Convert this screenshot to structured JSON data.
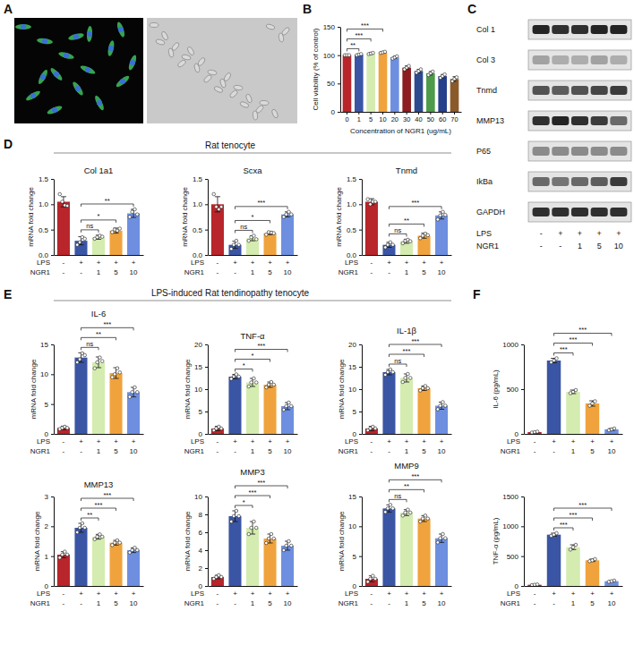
{
  "panel_labels": [
    "A",
    "B",
    "C",
    "D",
    "E",
    "F"
  ],
  "section_titles": [
    "Rat tenocyte",
    "LPS-induced Rat tendinopathy tenocyte"
  ],
  "conditions": {
    "rows": [
      {
        "label": "LPS",
        "cells": [
          "-",
          "+",
          "+",
          "+",
          "+"
        ]
      },
      {
        "label": "NGR1",
        "cells": [
          "-",
          "-",
          "1",
          "5",
          "10"
        ]
      }
    ]
  },
  "blot": {
    "intensity_range": [
      0,
      1
    ],
    "rows": [
      {
        "label": "Col 1",
        "bands": [
          0.9,
          0.85,
          0.85,
          0.9,
          0.9
        ]
      },
      {
        "label": "Col 3",
        "bands": [
          0.35,
          0.3,
          0.3,
          0.35,
          0.3
        ]
      },
      {
        "label": "Tnmd",
        "bands": [
          0.7,
          0.65,
          0.7,
          0.75,
          0.8
        ]
      },
      {
        "label": "MMP13",
        "bands": [
          0.85,
          0.9,
          0.85,
          0.8,
          0.6
        ]
      },
      {
        "label": "P65",
        "bands": [
          0.45,
          0.45,
          0.45,
          0.45,
          0.45
        ]
      },
      {
        "label": "IkBa",
        "bands": [
          0.6,
          0.55,
          0.6,
          0.65,
          0.8
        ]
      },
      {
        "label": "GAPDH",
        "bands": [
          0.85,
          0.85,
          0.85,
          0.85,
          0.85
        ]
      }
    ]
  },
  "chart_data": [
    {
      "type": "bar",
      "x_label": "Concentration of NGR1 (ug/mL)",
      "y_label": "Cell viability (% of control)",
      "categories": [
        "0",
        "1",
        "5",
        "10",
        "20",
        "30",
        "40",
        "50",
        "60",
        "70"
      ],
      "values": [
        100,
        101,
        103,
        105,
        96,
        78,
        72,
        68,
        63,
        58
      ],
      "errors": [
        1,
        1,
        1.5,
        1,
        2,
        3,
        3,
        3,
        3,
        4
      ],
      "points": [
        [
          100,
          100,
          100
        ],
        [
          100,
          101,
          102
        ],
        [
          102,
          103,
          104
        ],
        [
          104,
          105,
          106
        ],
        [
          94,
          96,
          98
        ],
        [
          75,
          78,
          81
        ],
        [
          69,
          72,
          75
        ],
        [
          65,
          68,
          71
        ],
        [
          60,
          63,
          66
        ],
        [
          54,
          58,
          61
        ]
      ],
      "colors": [
        "#b8252a",
        "#3a55a4",
        "#d4ecb0",
        "#f0a33c",
        "#6e8fe0",
        "#8c1d20",
        "#2d4a8f",
        "#4d9a4a",
        "#27408b",
        "#8b5a2b"
      ],
      "ylim": [
        0,
        150
      ],
      "yticks": [
        0,
        50,
        100,
        150
      ],
      "comparisons": [
        {
          "between": [
            0,
            1
          ],
          "label": "**"
        },
        {
          "between": [
            0,
            2
          ],
          "label": "***"
        },
        {
          "between": [
            0,
            3
          ],
          "label": "***"
        }
      ]
    },
    {
      "type": "bar",
      "title": "Col 1a1",
      "y_label": "mRNA fold change",
      "categories": [
        null,
        null,
        null,
        null,
        null
      ],
      "values": [
        1.05,
        0.28,
        0.35,
        0.48,
        0.82
      ],
      "errors": [
        0.1,
        0.08,
        0.04,
        0.05,
        0.08
      ],
      "points": [
        [
          1.2,
          1.05,
          0.98,
          0.97
        ],
        [
          0.2,
          0.25,
          0.35,
          0.32
        ],
        [
          0.32,
          0.35,
          0.38,
          0.36
        ],
        [
          0.45,
          0.5,
          0.48,
          0.52
        ],
        [
          0.75,
          0.85,
          0.9,
          0.8
        ]
      ],
      "colors": [
        "#b8252a",
        "#3a55a4",
        "#d4ecb0",
        "#f0a33c",
        "#6e8fe0"
      ],
      "ylim": [
        0,
        1.5
      ],
      "yticks": [
        {
          "value": 0,
          "label": "0.0"
        },
        0.5,
        {
          "value": 1,
          "label": "1.0"
        },
        1.5
      ],
      "comparisons": [
        {
          "between": [
            1,
            2
          ],
          "label": "ns"
        },
        {
          "between": [
            1,
            3
          ],
          "label": "*"
        },
        {
          "between": [
            1,
            4
          ],
          "label": "**"
        }
      ]
    },
    {
      "type": "bar",
      "title": "Scxa",
      "y_label": "mRNA fold change",
      "categories": [
        null,
        null,
        null,
        null,
        null
      ],
      "values": [
        1.0,
        0.2,
        0.33,
        0.43,
        0.8
      ],
      "errors": [
        0.15,
        0.07,
        0.05,
        0.03,
        0.05
      ],
      "points": [
        [
          1.2,
          0.95,
          0.9,
          0.95
        ],
        [
          0.12,
          0.2,
          0.28,
          0.2
        ],
        [
          0.28,
          0.35,
          0.38,
          0.31
        ],
        [
          0.4,
          0.45,
          0.44,
          0.43
        ],
        [
          0.75,
          0.8,
          0.85,
          0.8
        ]
      ],
      "colors": [
        "#b8252a",
        "#3a55a4",
        "#d4ecb0",
        "#f0a33c",
        "#6e8fe0"
      ],
      "ylim": [
        0,
        1.5
      ],
      "yticks": [
        {
          "value": 0,
          "label": "0.0"
        },
        0.5,
        {
          "value": 1,
          "label": "1.0"
        },
        1.5
      ],
      "comparisons": [
        {
          "between": [
            1,
            2
          ],
          "label": "ns"
        },
        {
          "between": [
            1,
            3
          ],
          "label": "*"
        },
        {
          "between": [
            1,
            4
          ],
          "label": "***"
        }
      ]
    },
    {
      "type": "bar",
      "title": "Tnmd",
      "y_label": "mRNA fold change",
      "categories": [
        null,
        null,
        null,
        null,
        null
      ],
      "values": [
        1.05,
        0.2,
        0.27,
        0.38,
        0.78
      ],
      "errors": [
        0.06,
        0.05,
        0.04,
        0.05,
        0.07
      ],
      "points": [
        [
          1.1,
          1.0,
          1.05,
          1.05
        ],
        [
          0.15,
          0.2,
          0.25,
          0.2
        ],
        [
          0.23,
          0.28,
          0.3,
          0.27
        ],
        [
          0.33,
          0.38,
          0.42,
          0.39
        ],
        [
          0.7,
          0.78,
          0.85,
          0.79
        ]
      ],
      "colors": [
        "#b8252a",
        "#3a55a4",
        "#d4ecb0",
        "#f0a33c",
        "#6e8fe0"
      ],
      "ylim": [
        0,
        1.5
      ],
      "yticks": [
        {
          "value": 0,
          "label": "0.0"
        },
        0.5,
        {
          "value": 1,
          "label": "1.0"
        },
        1.5
      ],
      "comparisons": [
        {
          "between": [
            1,
            2
          ],
          "label": "ns"
        },
        {
          "between": [
            1,
            3
          ],
          "label": "**"
        },
        {
          "between": [
            1,
            4
          ],
          "label": "***"
        }
      ]
    },
    {
      "type": "bar",
      "title": "IL-6",
      "y_label": "mRNA fold change",
      "categories": [
        null,
        null,
        null,
        null,
        null
      ],
      "values": [
        1,
        12.8,
        12,
        10.2,
        7
      ],
      "errors": [
        0.3,
        0.8,
        0.9,
        0.9,
        0.8
      ],
      "points": [
        [
          0.8,
          1,
          1.2,
          1
        ],
        [
          12,
          12.5,
          13.5,
          13.2
        ],
        [
          11,
          12,
          12.8,
          12.2
        ],
        [
          9.5,
          10,
          11,
          10.3
        ],
        [
          6.2,
          7,
          7.8,
          7
        ]
      ],
      "colors": [
        "#b8252a",
        "#3a55a4",
        "#d4ecb0",
        "#f0a33c",
        "#6e8fe0"
      ],
      "ylim": [
        0,
        15
      ],
      "yticks": [
        0,
        5,
        10,
        15
      ],
      "comparisons": [
        {
          "between": [
            1,
            2
          ],
          "label": "ns"
        },
        {
          "between": [
            1,
            3
          ],
          "label": "**"
        },
        {
          "between": [
            1,
            4
          ],
          "label": "***"
        }
      ]
    },
    {
      "type": "bar",
      "title": "TNF-α",
      "y_label": "mRNA fold change",
      "categories": [
        null,
        null,
        null,
        null,
        null
      ],
      "values": [
        1.2,
        12.8,
        11.5,
        11,
        6.2
      ],
      "errors": [
        0.5,
        0.5,
        0.9,
        0.6,
        0.8
      ],
      "points": [
        [
          0.8,
          1.2,
          1.6,
          1.2
        ],
        [
          12.3,
          12.8,
          13.3,
          12.8
        ],
        [
          10.6,
          11.5,
          12.4,
          11.5
        ],
        [
          10.4,
          11,
          11.6,
          11
        ],
        [
          5.4,
          6.2,
          7,
          6.2
        ]
      ],
      "colors": [
        "#b8252a",
        "#3a55a4",
        "#d4ecb0",
        "#f0a33c",
        "#6e8fe0"
      ],
      "ylim": [
        0,
        20
      ],
      "yticks": [
        0,
        5,
        10,
        15,
        20
      ],
      "comparisons": [
        {
          "between": [
            1,
            2
          ],
          "label": "*"
        },
        {
          "between": [
            1,
            3
          ],
          "label": "*"
        },
        {
          "between": [
            1,
            4
          ],
          "label": "***"
        }
      ]
    },
    {
      "type": "bar",
      "title": "IL-1β",
      "y_label": "mRNA fold change",
      "categories": [
        null,
        null,
        null,
        null,
        null
      ],
      "values": [
        1.2,
        13.8,
        12.5,
        10.2,
        6.3
      ],
      "errors": [
        0.5,
        0.6,
        0.9,
        0.5,
        0.8
      ],
      "points": [
        [
          0.8,
          1.2,
          1.6,
          1.2
        ],
        [
          13.2,
          13.8,
          14.4,
          13.8
        ],
        [
          11.6,
          12.5,
          13.4,
          12.5
        ],
        [
          9.7,
          10.2,
          10.7,
          10.2
        ],
        [
          5.5,
          6.3,
          7.1,
          6.3
        ]
      ],
      "colors": [
        "#b8252a",
        "#3a55a4",
        "#d4ecb0",
        "#f0a33c",
        "#6e8fe0"
      ],
      "ylim": [
        0,
        20
      ],
      "yticks": [
        0,
        5,
        10,
        15,
        20
      ],
      "comparisons": [
        {
          "between": [
            1,
            2
          ],
          "label": "ns"
        },
        {
          "between": [
            1,
            3
          ],
          "label": "***"
        },
        {
          "between": [
            1,
            4
          ],
          "label": "***"
        }
      ]
    },
    {
      "type": "bar",
      "title": "MMP13",
      "y_label": "mRNA fold change",
      "categories": [
        null,
        null,
        null,
        null,
        null
      ],
      "values": [
        1.05,
        1.95,
        1.65,
        1.45,
        1.2
      ],
      "errors": [
        0.1,
        0.15,
        0.08,
        0.08,
        0.08
      ],
      "points": [
        [
          0.95,
          1.05,
          1.15,
          1.05
        ],
        [
          1.8,
          1.95,
          2.1,
          1.95
        ],
        [
          1.57,
          1.65,
          1.73,
          1.65
        ],
        [
          1.37,
          1.45,
          1.53,
          1.45
        ],
        [
          1.12,
          1.2,
          1.28,
          1.2
        ]
      ],
      "colors": [
        "#b8252a",
        "#3a55a4",
        "#d4ecb0",
        "#f0a33c",
        "#6e8fe0"
      ],
      "ylim": [
        0,
        3
      ],
      "yticks": [
        0,
        1,
        2,
        3
      ],
      "comparisons": [
        {
          "between": [
            1,
            2
          ],
          "label": "**"
        },
        {
          "between": [
            1,
            3
          ],
          "label": "***"
        },
        {
          "between": [
            1,
            4
          ],
          "label": "***"
        }
      ]
    },
    {
      "type": "bar",
      "title": "MMP3",
      "y_label": "mRNA fold change",
      "categories": [
        null,
        null,
        null,
        null,
        null
      ],
      "values": [
        1,
        7.8,
        6.5,
        5.3,
        4.5
      ],
      "errors": [
        0.2,
        0.6,
        0.7,
        0.5,
        0.5
      ],
      "points": [
        [
          0.8,
          1,
          1.2,
          1
        ],
        [
          7.2,
          7.8,
          8.4,
          7.8
        ],
        [
          5.8,
          6.5,
          7.2,
          6.5
        ],
        [
          4.8,
          5.3,
          5.8,
          5.3
        ],
        [
          4,
          4.5,
          5,
          4.5
        ]
      ],
      "colors": [
        "#b8252a",
        "#3a55a4",
        "#d4ecb0",
        "#f0a33c",
        "#6e8fe0"
      ],
      "ylim": [
        0,
        10
      ],
      "yticks": [
        0,
        2,
        4,
        6,
        8,
        10
      ],
      "comparisons": [
        {
          "between": [
            1,
            2
          ],
          "label": "*"
        },
        {
          "between": [
            1,
            3
          ],
          "label": "***"
        },
        {
          "between": [
            1,
            4
          ],
          "label": "***"
        }
      ]
    },
    {
      "type": "bar",
      "title": "MMP9",
      "y_label": "mRNA fold change",
      "categories": [
        null,
        null,
        null,
        null,
        null
      ],
      "values": [
        1.2,
        13,
        12.3,
        11.3,
        8
      ],
      "errors": [
        0.5,
        0.6,
        0.5,
        0.5,
        0.7
      ],
      "points": [
        [
          0.7,
          1.2,
          1.7,
          1.2
        ],
        [
          12.4,
          13,
          13.6,
          13
        ],
        [
          11.8,
          12.3,
          12.8,
          12.3
        ],
        [
          10.8,
          11.3,
          11.8,
          11.3
        ],
        [
          7.3,
          8,
          8.7,
          8
        ]
      ],
      "colors": [
        "#b8252a",
        "#3a55a4",
        "#d4ecb0",
        "#f0a33c",
        "#6e8fe0"
      ],
      "ylim": [
        0,
        15
      ],
      "yticks": [
        0,
        5,
        10,
        15
      ],
      "comparisons": [
        {
          "between": [
            1,
            2
          ],
          "label": "ns"
        },
        {
          "between": [
            1,
            3
          ],
          "label": "**"
        },
        {
          "between": [
            1,
            4
          ],
          "label": "***"
        }
      ]
    },
    {
      "type": "bar",
      "y_label": "IL-6 (pg/mL)",
      "categories": [
        null,
        null,
        null,
        null,
        null
      ],
      "values": [
        20,
        820,
        470,
        340,
        50
      ],
      "errors": [
        5,
        25,
        20,
        30,
        10
      ],
      "points": [
        [
          15,
          20,
          25
        ],
        [
          800,
          820,
          845
        ],
        [
          455,
          470,
          490
        ],
        [
          315,
          340,
          365
        ],
        [
          40,
          50,
          60
        ]
      ],
      "colors": [
        "#b8252a",
        "#3a55a4",
        "#d4ecb0",
        "#f0a33c",
        "#6e8fe0"
      ],
      "ylim": [
        0,
        1000
      ],
      "yticks": [
        0,
        500,
        1000
      ],
      "comparisons": [
        {
          "between": [
            1,
            2
          ],
          "label": "***"
        },
        {
          "between": [
            1,
            3
          ],
          "label": "***"
        },
        {
          "between": [
            1,
            4
          ],
          "label": "***"
        }
      ]
    },
    {
      "type": "bar",
      "y_label": "TNF-α (pg/mL)",
      "categories": [
        null,
        null,
        null,
        null,
        null
      ],
      "values": [
        20,
        860,
        650,
        430,
        80
      ],
      "errors": [
        5,
        25,
        40,
        20,
        10
      ],
      "points": [
        [
          15,
          20,
          25
        ],
        [
          840,
          860,
          885
        ],
        [
          610,
          650,
          690
        ],
        [
          415,
          430,
          450
        ],
        [
          70,
          80,
          90
        ]
      ],
      "colors": [
        "#b8252a",
        "#3a55a4",
        "#d4ecb0",
        "#f0a33c",
        "#6e8fe0"
      ],
      "ylim": [
        0,
        1500
      ],
      "yticks": [
        0,
        500,
        1000,
        1500
      ],
      "comparisons": [
        {
          "between": [
            1,
            2
          ],
          "label": "***"
        },
        {
          "between": [
            1,
            3
          ],
          "label": "***"
        },
        {
          "between": [
            1,
            4
          ],
          "label": "***"
        }
      ]
    }
  ]
}
